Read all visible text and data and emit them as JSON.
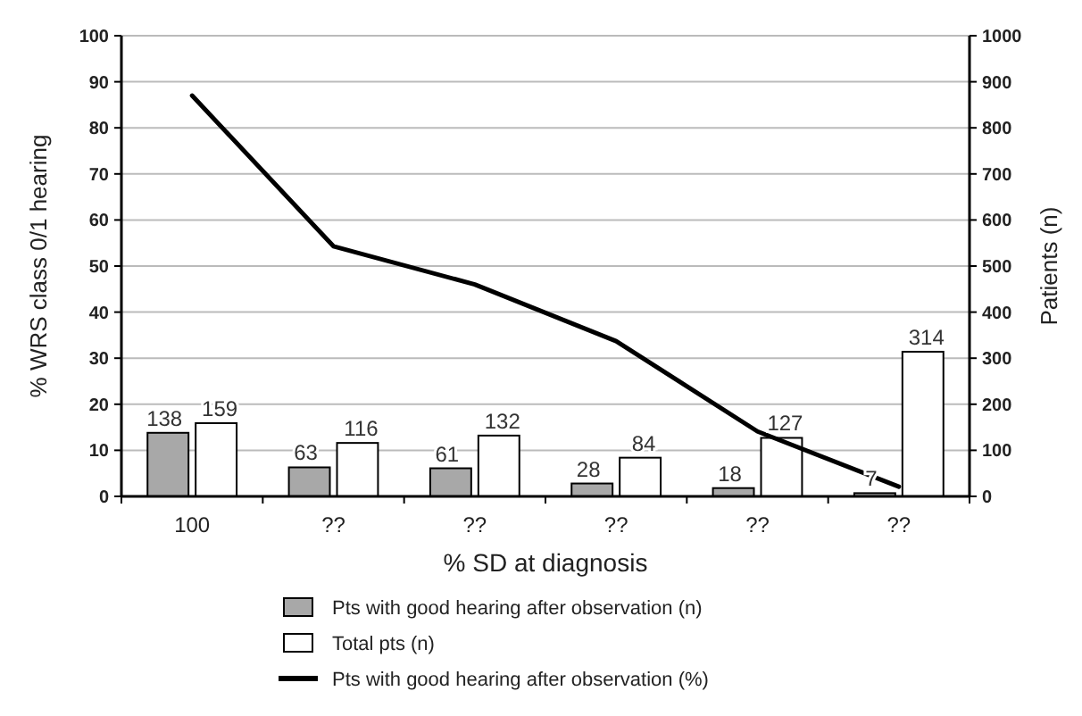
{
  "chart_data": {
    "type": "bar",
    "xlabel": "% SD at diagnosis",
    "ylabel": "% WRS class 0/1 hearing",
    "y2label": "Patients (n)",
    "categories": [
      "100",
      "??",
      "??",
      "??",
      "??",
      "??"
    ],
    "series": [
      {
        "name": "Pts with good hearing after observation (n)",
        "color": "#a8a8a8",
        "axis": "y2",
        "values": [
          138,
          63,
          61,
          28,
          18,
          7
        ],
        "value_labels": [
          "138",
          "63",
          "61",
          "28",
          "18",
          "7"
        ]
      },
      {
        "name": "Total pts (n)",
        "color": "#ffffff",
        "axis": "y2",
        "values": [
          159,
          116,
          132,
          84,
          127,
          314
        ],
        "value_labels": [
          "159",
          "116",
          "132",
          "84",
          "127",
          "314"
        ]
      },
      {
        "name": "Pts with good hearing after observation (%)",
        "type": "line",
        "color": "#000000",
        "values": [
          87,
          54.3,
          46,
          33.7,
          14.1,
          2.1
        ]
      }
    ],
    "ylim": [
      0,
      100
    ],
    "yticks": [
      0,
      10,
      20,
      30,
      40,
      50,
      60,
      70,
      80,
      90,
      100
    ],
    "y2lim": [
      0,
      1000
    ],
    "y2ticks": [
      0,
      100,
      200,
      300,
      400,
      500,
      600,
      700,
      800,
      900,
      1000
    ],
    "grid": "y",
    "legend": "bottom",
    "marker": "none"
  }
}
